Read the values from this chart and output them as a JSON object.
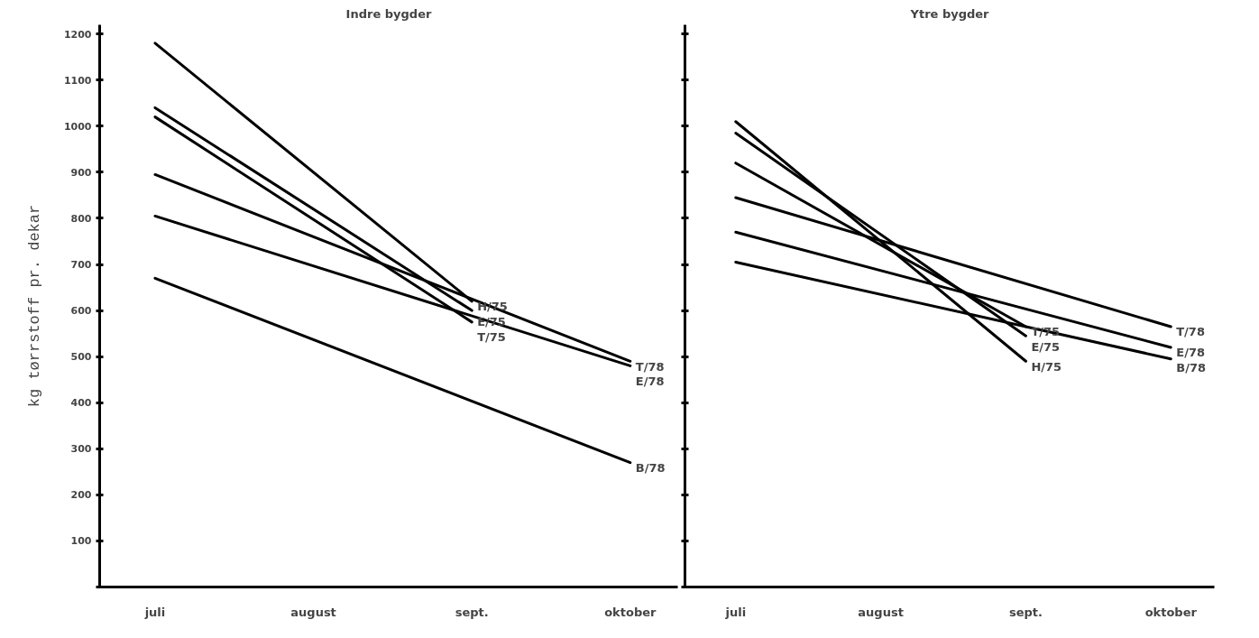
{
  "chart_data": [
    {
      "type": "line",
      "title": "Indre bygder",
      "ylabel": "kg tørrstoff pr. dekar",
      "categories": [
        "juli",
        "august",
        "sept.",
        "oktober"
      ],
      "ylim": [
        0,
        1220
      ],
      "yticks": [
        {
          "value": 0,
          "label": null
        },
        100,
        200,
        300,
        400,
        500,
        600,
        700,
        800,
        900,
        1000,
        1100,
        1200
      ],
      "grid": false,
      "legend": false,
      "series": [
        {
          "name": "H/75",
          "color": "#000000",
          "values": [
            1180,
            null,
            620,
            null
          ]
        },
        {
          "name": "E/75",
          "color": "#000000",
          "values": [
            1040,
            null,
            600,
            null
          ]
        },
        {
          "name": "T/75",
          "color": "#000000",
          "values": [
            1020,
            null,
            575,
            null
          ]
        },
        {
          "name": "T/78",
          "color": "#000000",
          "values": [
            895,
            null,
            null,
            490
          ]
        },
        {
          "name": "E/78",
          "color": "#000000",
          "values": [
            805,
            null,
            null,
            480
          ]
        },
        {
          "name": "B/78",
          "color": "#000000",
          "values": [
            670,
            null,
            null,
            270
          ]
        }
      ]
    },
    {
      "type": "line",
      "title": "Ytre bygder",
      "categories": [
        "juli",
        "august",
        "sept.",
        "oktober"
      ],
      "ylim": [
        0,
        1220
      ],
      "yticks": [
        {
          "value": 0,
          "label": null
        },
        {
          "value": 100,
          "label": null
        },
        {
          "value": 200,
          "label": null
        },
        {
          "value": 300,
          "label": null
        },
        {
          "value": 400,
          "label": null
        },
        {
          "value": 500,
          "label": null
        },
        {
          "value": 600,
          "label": null
        },
        {
          "value": 700,
          "label": null
        },
        {
          "value": 800,
          "label": null
        },
        {
          "value": 900,
          "label": null
        },
        {
          "value": 1000,
          "label": null
        },
        {
          "value": 1100,
          "label": null
        },
        {
          "value": 1200,
          "label": null
        }
      ],
      "tick_labels": "x",
      "grid": false,
      "legend": false,
      "series": [
        {
          "name": "T/75",
          "color": "#000000",
          "values": [
            920,
            null,
            565,
            null
          ]
        },
        {
          "name": "E/75",
          "color": "#000000",
          "values": [
            985,
            null,
            545,
            null
          ]
        },
        {
          "name": "H/75",
          "color": "#000000",
          "values": [
            1010,
            null,
            490,
            null
          ]
        },
        {
          "name": "T/78",
          "color": "#000000",
          "values": [
            845,
            null,
            null,
            565
          ]
        },
        {
          "name": "E/78",
          "color": "#000000",
          "values": [
            770,
            null,
            null,
            520
          ]
        },
        {
          "name": "B/78",
          "color": "#000000",
          "values": [
            705,
            null,
            null,
            495
          ]
        }
      ]
    }
  ]
}
